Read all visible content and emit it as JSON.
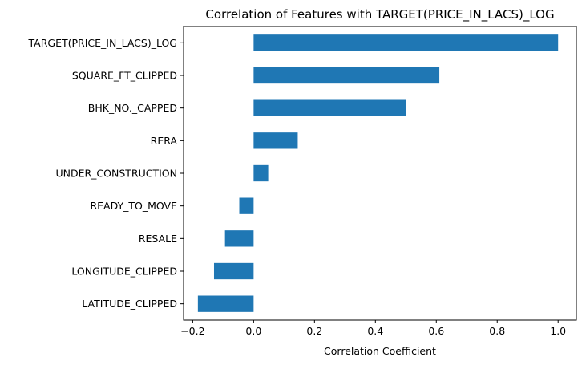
{
  "chart_data": {
    "type": "bar",
    "orientation": "horizontal",
    "title": "Correlation of Features with TARGET(PRICE_IN_LACS)_LOG",
    "xlabel": "Correlation Coefficient",
    "ylabel": "",
    "xlim": [
      -0.23,
      1.06
    ],
    "xticks": [
      -0.2,
      0.0,
      0.2,
      0.4,
      0.6,
      0.8,
      1.0
    ],
    "xtick_labels": [
      "−0.2",
      "0.0",
      "0.2",
      "0.4",
      "0.6",
      "0.8",
      "1.0"
    ],
    "grid": false,
    "bar_color": "#1f77b4",
    "categories": [
      "TARGET(PRICE_IN_LACS)_LOG",
      "SQUARE_FT_CLIPPED",
      "BHK_NO._CAPPED",
      "RERA",
      "UNDER_CONSTRUCTION",
      "READY_TO_MOVE",
      "RESALE",
      "LONGITUDE_CLIPPED",
      "LATITUDE_CLIPPED"
    ],
    "values": [
      1.0,
      0.61,
      0.5,
      0.145,
      0.048,
      -0.047,
      -0.094,
      -0.13,
      -0.183
    ]
  }
}
